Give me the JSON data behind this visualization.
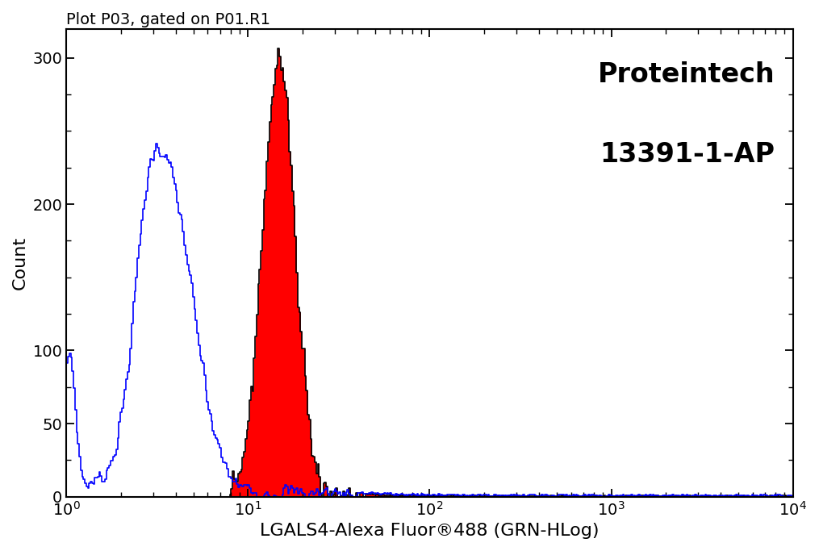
{
  "title": "Plot P03, gated on P01.R1",
  "xlabel": "LGALS4-Alexa Fluor®488 (GRN-HLog)",
  "ylabel": "Count",
  "watermark_line1": "Proteintech",
  "watermark_line2": "13391-1-AP",
  "xlim_log": [
    1.0,
    10000.0
  ],
  "ylim": [
    0,
    320
  ],
  "yticks": [
    0,
    50,
    100,
    200,
    300
  ],
  "background_color": "#ffffff",
  "blue_mu": 0.56,
  "blue_sig": 0.14,
  "blue_peak_height": 210,
  "blue_shoulder_mu": 0.44,
  "blue_shoulder_sig": 0.07,
  "blue_shoulder_height": 60,
  "blue_left_spike_height": 90,
  "red_mu": 1.17,
  "red_sig": 0.09,
  "red_peak_height": 300,
  "red_base_start_log": 0.9
}
